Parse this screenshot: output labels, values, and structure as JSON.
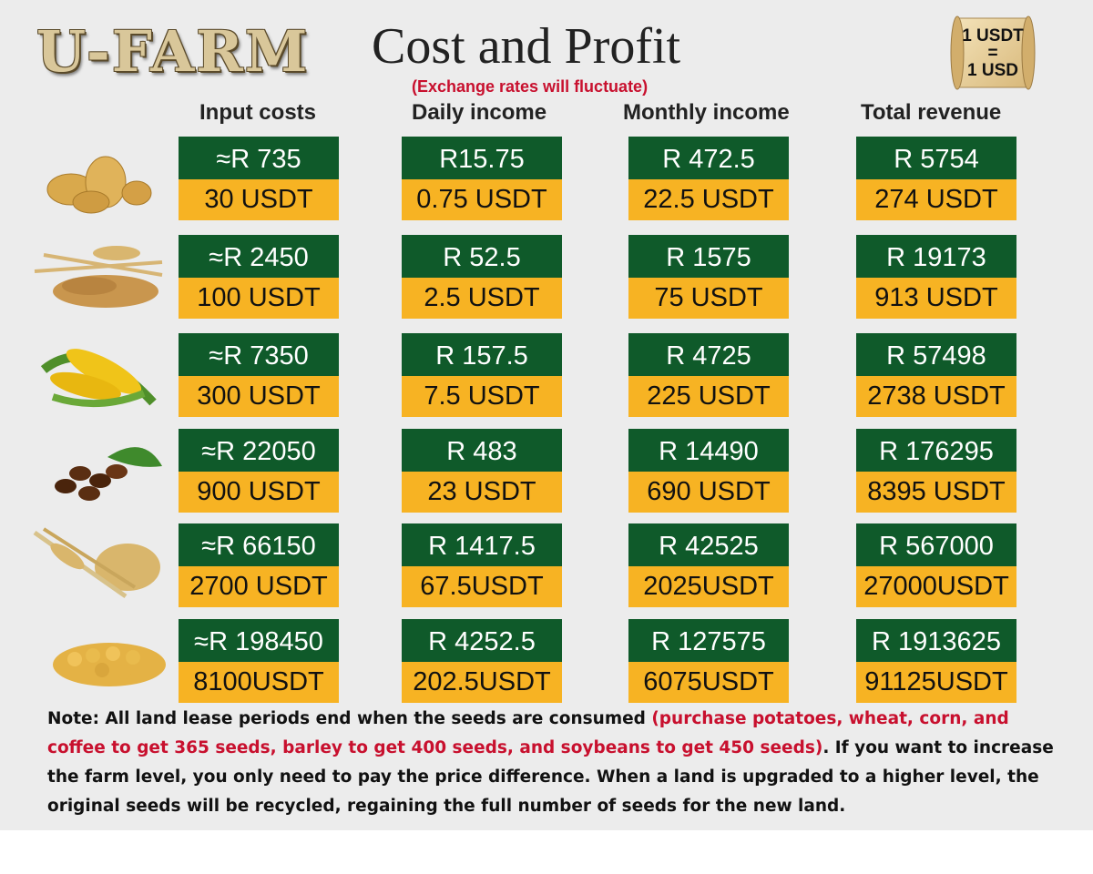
{
  "logo_text": "U-FARM",
  "title": "Cost and Profit",
  "subtitle": "(Exchange rates will fluctuate)",
  "rate_badge": {
    "line1": "1 USDT",
    "line2": "=",
    "line3": "1 USD"
  },
  "columns": [
    "Input costs",
    "Daily income",
    "Monthly income",
    "Total revenue"
  ],
  "rows": [
    {
      "crop_icon": "potato-icon",
      "cells": [
        {
          "rand": "≈R 735",
          "usdt": "30 USDT"
        },
        {
          "rand": "R15.75",
          "usdt": "0.75 USDT"
        },
        {
          "rand": "R 472.5",
          "usdt": "22.5 USDT"
        },
        {
          "rand": "R 5754",
          "usdt": "274 USDT"
        }
      ]
    },
    {
      "crop_icon": "wheat-icon",
      "cells": [
        {
          "rand": "≈R 2450",
          "usdt": "100 USDT"
        },
        {
          "rand": "R 52.5",
          "usdt": "2.5 USDT"
        },
        {
          "rand": "R 1575",
          "usdt": "75 USDT"
        },
        {
          "rand": "R 19173",
          "usdt": "913 USDT"
        }
      ]
    },
    {
      "crop_icon": "corn-icon",
      "cells": [
        {
          "rand": "≈R 7350",
          "usdt": "300 USDT"
        },
        {
          "rand": "R 157.5",
          "usdt": "7.5 USDT"
        },
        {
          "rand": "R 4725",
          "usdt": "225 USDT"
        },
        {
          "rand": "R 57498",
          "usdt": "2738 USDT"
        }
      ]
    },
    {
      "crop_icon": "coffee-icon",
      "cells": [
        {
          "rand": "≈R 22050",
          "usdt": "900 USDT"
        },
        {
          "rand": "R 483",
          "usdt": "23 USDT"
        },
        {
          "rand": "R 14490",
          "usdt": "690 USDT"
        },
        {
          "rand": "R 176295",
          "usdt": "8395 USDT"
        }
      ]
    },
    {
      "crop_icon": "barley-icon",
      "cells": [
        {
          "rand": "≈R 66150",
          "usdt": "2700 USDT"
        },
        {
          "rand": "R 1417.5",
          "usdt": "67.5USDT"
        },
        {
          "rand": "R 42525",
          "usdt": "2025USDT"
        },
        {
          "rand": "R 567000",
          "usdt": "27000USDT"
        }
      ]
    },
    {
      "crop_icon": "soybean-icon",
      "cells": [
        {
          "rand": "≈R 198450",
          "usdt": "8100USDT"
        },
        {
          "rand": "R 4252.5",
          "usdt": "202.5USDT"
        },
        {
          "rand": "R 127575",
          "usdt": "6075USDT"
        },
        {
          "rand": "R 1913625",
          "usdt": "91125USDT"
        }
      ]
    }
  ],
  "note": {
    "part1": "Note: All land lease periods end when the seeds are consumed ",
    "highlight": "(purchase potatoes, wheat, corn, and coffee to get 365 seeds, barley to get 400 seeds, and soybeans to get 450 seeds)",
    "part2": ". If you want to increase the farm level, you only need to pay the price difference. When a land is upgraded to a higher level, the original seeds will be recycled, regaining the full number of seeds for the new land."
  },
  "colors": {
    "green": "#0f5a2a",
    "gold": "#f7b323",
    "red": "#c8102e"
  }
}
